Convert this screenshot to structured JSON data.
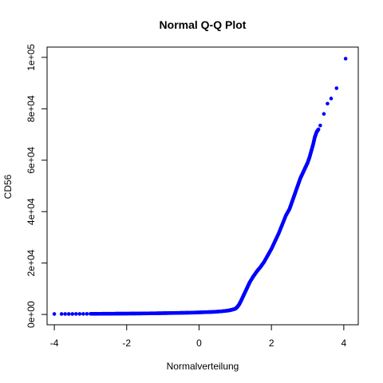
{
  "chart_data": {
    "type": "scatter",
    "title": "Normal Q-Q Plot",
    "xlabel": "Normalverteilung",
    "ylabel": "CD56",
    "xlim": [
      -4.2,
      4.4
    ],
    "ylim": [
      -4000,
      104000
    ],
    "x_ticks": [
      -4,
      -2,
      0,
      2,
      4
    ],
    "x_tick_labels": [
      "-4",
      "-2",
      "0",
      "2",
      "4"
    ],
    "y_ticks": [
      0,
      20000,
      40000,
      60000,
      80000,
      100000
    ],
    "y_tick_labels": [
      "0e+00",
      "2e+04",
      "4e+04",
      "6e+04",
      "8e+04",
      "1e+05"
    ],
    "grid": false,
    "legend": "none",
    "point_color": "#0000ff",
    "series": [
      {
        "x": [
          -4.0,
          -3.8,
          -3.7,
          -3.6,
          -3.5,
          -3.4,
          -3.3,
          -3.2,
          -3.1,
          -3.0,
          -2.8,
          -2.6,
          -2.4,
          -2.2,
          -2.0,
          -1.8,
          -1.6,
          -1.4,
          -1.2,
          -1.0,
          -0.8,
          -0.6,
          -0.4,
          -0.2,
          0.0,
          0.2,
          0.4,
          0.6,
          0.8,
          0.9,
          1.0,
          1.05,
          1.1,
          1.15,
          1.2,
          1.25,
          1.3,
          1.35,
          1.4,
          1.5,
          1.6,
          1.7,
          1.8,
          1.9,
          2.0,
          2.1,
          2.2,
          2.3,
          2.4,
          2.5,
          2.55,
          2.6,
          2.65,
          2.7,
          2.75,
          2.8,
          2.85,
          2.9,
          2.95,
          3.0,
          3.05,
          3.1,
          3.15,
          3.2,
          3.25,
          3.3,
          3.35,
          3.45,
          3.55,
          3.65,
          3.8,
          4.05
        ],
        "y": [
          200,
          200,
          200,
          200,
          200,
          210,
          220,
          230,
          240,
          250,
          260,
          280,
          300,
          320,
          340,
          360,
          380,
          420,
          460,
          500,
          550,
          600,
          650,
          700,
          800,
          900,
          1000,
          1200,
          1500,
          1800,
          2200,
          2800,
          3700,
          5000,
          6500,
          8000,
          9500,
          11000,
          12500,
          14800,
          16800,
          18500,
          20500,
          23000,
          25500,
          28500,
          31500,
          35000,
          38500,
          41000,
          43000,
          45000,
          47000,
          49000,
          51000,
          53000,
          54500,
          56000,
          57500,
          59000,
          61000,
          63500,
          66000,
          69000,
          71000,
          72000,
          73500,
          78000,
          82000,
          84000,
          88000,
          99500
        ]
      }
    ]
  }
}
